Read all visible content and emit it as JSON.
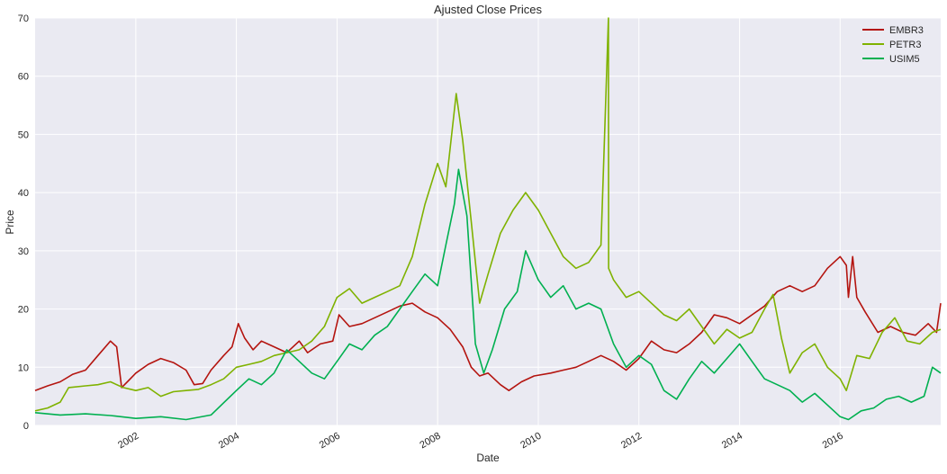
{
  "chart_data": {
    "type": "line",
    "title": "Ajusted Close Prices",
    "xlabel": "Date",
    "ylabel": "Price",
    "xlim": [
      "2000-01-01",
      "2017-12-31"
    ],
    "ylim": [
      0,
      70
    ],
    "yticks": [
      0,
      10,
      20,
      30,
      40,
      50,
      60,
      70
    ],
    "xticks": [
      "2002",
      "2004",
      "2006",
      "2008",
      "2010",
      "2012",
      "2014",
      "2016"
    ],
    "grid": true,
    "legend_position": "top-right",
    "background": "#eaeaf2",
    "series": [
      {
        "name": "EMBR3",
        "color": "#b4140f",
        "points": [
          [
            "2000-01-01",
            6.0
          ],
          [
            "2000-04-01",
            6.8
          ],
          [
            "2000-07-01",
            7.5
          ],
          [
            "2000-10-01",
            8.8
          ],
          [
            "2001-01-01",
            9.5
          ],
          [
            "2001-04-01",
            12.0
          ],
          [
            "2001-07-01",
            14.5
          ],
          [
            "2001-08-15",
            13.5
          ],
          [
            "2001-09-20",
            6.5
          ],
          [
            "2001-11-01",
            7.5
          ],
          [
            "2002-01-01",
            9.0
          ],
          [
            "2002-04-01",
            10.5
          ],
          [
            "2002-07-01",
            11.5
          ],
          [
            "2002-10-01",
            10.8
          ],
          [
            "2003-01-01",
            9.5
          ],
          [
            "2003-03-01",
            7.0
          ],
          [
            "2003-05-01",
            7.2
          ],
          [
            "2003-07-01",
            9.5
          ],
          [
            "2003-10-01",
            12.0
          ],
          [
            "2003-12-01",
            13.5
          ],
          [
            "2004-01-15",
            17.5
          ],
          [
            "2004-03-01",
            15.0
          ],
          [
            "2004-05-01",
            13.0
          ],
          [
            "2004-07-01",
            14.5
          ],
          [
            "2004-10-01",
            13.5
          ],
          [
            "2005-01-01",
            12.5
          ],
          [
            "2005-04-01",
            14.5
          ],
          [
            "2005-06-01",
            12.5
          ],
          [
            "2005-09-01",
            14.0
          ],
          [
            "2005-12-01",
            14.5
          ],
          [
            "2006-01-15",
            19.0
          ],
          [
            "2006-04-01",
            17.0
          ],
          [
            "2006-07-01",
            17.5
          ],
          [
            "2006-10-01",
            18.5
          ],
          [
            "2007-01-01",
            19.5
          ],
          [
            "2007-04-01",
            20.5
          ],
          [
            "2007-07-01",
            21.0
          ],
          [
            "2007-10-01",
            19.5
          ],
          [
            "2008-01-01",
            18.5
          ],
          [
            "2008-04-01",
            16.5
          ],
          [
            "2008-07-01",
            13.5
          ],
          [
            "2008-09-01",
            10.0
          ],
          [
            "2008-11-01",
            8.5
          ],
          [
            "2009-01-01",
            9.0
          ],
          [
            "2009-04-01",
            7.0
          ],
          [
            "2009-06-01",
            6.0
          ],
          [
            "2009-09-01",
            7.5
          ],
          [
            "2009-12-01",
            8.5
          ],
          [
            "2010-04-01",
            9.0
          ],
          [
            "2010-07-01",
            9.5
          ],
          [
            "2010-10-01",
            10.0
          ],
          [
            "2011-01-01",
            11.0
          ],
          [
            "2011-04-01",
            12.0
          ],
          [
            "2011-07-01",
            11.0
          ],
          [
            "2011-10-01",
            9.5
          ],
          [
            "2012-01-01",
            11.5
          ],
          [
            "2012-04-01",
            14.5
          ],
          [
            "2012-07-01",
            13.0
          ],
          [
            "2012-10-01",
            12.5
          ],
          [
            "2013-01-01",
            14.0
          ],
          [
            "2013-04-01",
            16.0
          ],
          [
            "2013-07-01",
            19.0
          ],
          [
            "2013-10-01",
            18.5
          ],
          [
            "2014-01-01",
            17.5
          ],
          [
            "2014-04-01",
            19.0
          ],
          [
            "2014-07-01",
            20.5
          ],
          [
            "2014-10-01",
            23.0
          ],
          [
            "2015-01-01",
            24.0
          ],
          [
            "2015-04-01",
            23.0
          ],
          [
            "2015-07-01",
            24.0
          ],
          [
            "2015-10-01",
            27.0
          ],
          [
            "2016-01-01",
            29.0
          ],
          [
            "2016-02-15",
            27.5
          ],
          [
            "2016-03-01",
            22.0
          ],
          [
            "2016-04-01",
            29.0
          ],
          [
            "2016-05-01",
            22.0
          ],
          [
            "2016-07-01",
            19.5
          ],
          [
            "2016-10-01",
            16.0
          ],
          [
            "2017-01-01",
            17.0
          ],
          [
            "2017-04-01",
            16.0
          ],
          [
            "2017-07-01",
            15.5
          ],
          [
            "2017-10-01",
            17.5
          ],
          [
            "2017-12-01",
            16.0
          ],
          [
            "2017-12-31",
            21.0
          ]
        ]
      },
      {
        "name": "PETR3",
        "color": "#7fb200",
        "points": [
          [
            "2000-01-01",
            2.5
          ],
          [
            "2000-04-01",
            3.0
          ],
          [
            "2000-07-01",
            4.0
          ],
          [
            "2000-09-01",
            6.5
          ],
          [
            "2001-01-01",
            6.8
          ],
          [
            "2001-04-01",
            7.0
          ],
          [
            "2001-07-01",
            7.5
          ],
          [
            "2001-10-01",
            6.5
          ],
          [
            "2002-01-01",
            6.0
          ],
          [
            "2002-04-01",
            6.5
          ],
          [
            "2002-07-01",
            5.0
          ],
          [
            "2002-10-01",
            5.8
          ],
          [
            "2003-01-01",
            6.0
          ],
          [
            "2003-04-01",
            6.2
          ],
          [
            "2003-07-01",
            7.0
          ],
          [
            "2003-10-01",
            8.0
          ],
          [
            "2004-01-01",
            10.0
          ],
          [
            "2004-04-01",
            10.5
          ],
          [
            "2004-07-01",
            11.0
          ],
          [
            "2004-10-01",
            12.0
          ],
          [
            "2005-01-01",
            12.5
          ],
          [
            "2005-04-01",
            13.0
          ],
          [
            "2005-07-01",
            14.5
          ],
          [
            "2005-10-01",
            17.0
          ],
          [
            "2006-01-01",
            22.0
          ],
          [
            "2006-04-01",
            23.5
          ],
          [
            "2006-07-01",
            21.0
          ],
          [
            "2006-10-01",
            22.0
          ],
          [
            "2007-01-01",
            23.0
          ],
          [
            "2007-04-01",
            24.0
          ],
          [
            "2007-07-01",
            29.0
          ],
          [
            "2007-10-01",
            38.0
          ],
          [
            "2008-01-01",
            45.0
          ],
          [
            "2008-03-01",
            41.0
          ],
          [
            "2008-05-15",
            57.0
          ],
          [
            "2008-07-01",
            49.0
          ],
          [
            "2008-09-01",
            35.0
          ],
          [
            "2008-11-01",
            21.0
          ],
          [
            "2009-01-01",
            26.0
          ],
          [
            "2009-04-01",
            33.0
          ],
          [
            "2009-07-01",
            37.0
          ],
          [
            "2009-10-01",
            40.0
          ],
          [
            "2010-01-01",
            37.0
          ],
          [
            "2010-04-01",
            33.0
          ],
          [
            "2010-07-01",
            29.0
          ],
          [
            "2010-10-01",
            27.0
          ],
          [
            "2011-01-01",
            28.0
          ],
          [
            "2011-04-01",
            31.0
          ],
          [
            "2011-05-25",
            70.0
          ],
          [
            "2011-05-26",
            27.0
          ],
          [
            "2011-07-01",
            25.0
          ],
          [
            "2011-10-01",
            22.0
          ],
          [
            "2012-01-01",
            23.0
          ],
          [
            "2012-04-01",
            21.0
          ],
          [
            "2012-07-01",
            19.0
          ],
          [
            "2012-10-01",
            18.0
          ],
          [
            "2013-01-01",
            20.0
          ],
          [
            "2013-04-01",
            17.0
          ],
          [
            "2013-07-01",
            14.0
          ],
          [
            "2013-10-01",
            16.5
          ],
          [
            "2014-01-01",
            15.0
          ],
          [
            "2014-04-01",
            16.0
          ],
          [
            "2014-07-01",
            20.0
          ],
          [
            "2014-09-01",
            22.5
          ],
          [
            "2014-11-01",
            15.0
          ],
          [
            "2015-01-01",
            9.0
          ],
          [
            "2015-04-01",
            12.5
          ],
          [
            "2015-07-01",
            14.0
          ],
          [
            "2015-10-01",
            10.0
          ],
          [
            "2016-01-01",
            8.0
          ],
          [
            "2016-02-15",
            6.0
          ],
          [
            "2016-05-01",
            12.0
          ],
          [
            "2016-08-01",
            11.5
          ],
          [
            "2016-11-01",
            16.0
          ],
          [
            "2017-02-01",
            18.5
          ],
          [
            "2017-05-01",
            14.5
          ],
          [
            "2017-08-01",
            14.0
          ],
          [
            "2017-11-01",
            16.0
          ],
          [
            "2017-12-31",
            16.5
          ]
        ]
      },
      {
        "name": "USIM5",
        "color": "#00b050",
        "points": [
          [
            "2000-01-01",
            2.2
          ],
          [
            "2000-07-01",
            1.8
          ],
          [
            "2001-01-01",
            2.0
          ],
          [
            "2001-07-01",
            1.7
          ],
          [
            "2002-01-01",
            1.2
          ],
          [
            "2002-07-01",
            1.5
          ],
          [
            "2003-01-01",
            1.0
          ],
          [
            "2003-07-01",
            1.8
          ],
          [
            "2004-01-01",
            6.0
          ],
          [
            "2004-04-01",
            8.0
          ],
          [
            "2004-07-01",
            7.0
          ],
          [
            "2004-10-01",
            9.0
          ],
          [
            "2005-01-01",
            13.0
          ],
          [
            "2005-04-01",
            11.0
          ],
          [
            "2005-07-01",
            9.0
          ],
          [
            "2005-10-01",
            8.0
          ],
          [
            "2006-01-01",
            11.0
          ],
          [
            "2006-04-01",
            14.0
          ],
          [
            "2006-07-01",
            13.0
          ],
          [
            "2006-10-01",
            15.5
          ],
          [
            "2007-01-01",
            17.0
          ],
          [
            "2007-04-01",
            20.0
          ],
          [
            "2007-07-01",
            23.0
          ],
          [
            "2007-10-01",
            26.0
          ],
          [
            "2008-01-01",
            24.0
          ],
          [
            "2008-03-01",
            31.0
          ],
          [
            "2008-05-01",
            38.0
          ],
          [
            "2008-06-01",
            44.0
          ],
          [
            "2008-08-01",
            36.0
          ],
          [
            "2008-10-01",
            14.0
          ],
          [
            "2008-12-01",
            9.0
          ],
          [
            "2009-02-01",
            13.0
          ],
          [
            "2009-05-01",
            20.0
          ],
          [
            "2009-08-01",
            23.0
          ],
          [
            "2009-10-01",
            30.0
          ],
          [
            "2010-01-01",
            25.0
          ],
          [
            "2010-04-01",
            22.0
          ],
          [
            "2010-07-01",
            24.0
          ],
          [
            "2010-10-01",
            20.0
          ],
          [
            "2011-01-01",
            21.0
          ],
          [
            "2011-04-01",
            20.0
          ],
          [
            "2011-07-01",
            14.0
          ],
          [
            "2011-10-01",
            10.0
          ],
          [
            "2012-01-01",
            12.0
          ],
          [
            "2012-04-01",
            10.5
          ],
          [
            "2012-07-01",
            6.0
          ],
          [
            "2012-10-01",
            4.5
          ],
          [
            "2013-01-01",
            8.0
          ],
          [
            "2013-04-01",
            11.0
          ],
          [
            "2013-07-01",
            9.0
          ],
          [
            "2013-10-01",
            11.5
          ],
          [
            "2014-01-01",
            14.0
          ],
          [
            "2014-04-01",
            11.0
          ],
          [
            "2014-07-01",
            8.0
          ],
          [
            "2014-10-01",
            7.0
          ],
          [
            "2015-01-01",
            6.0
          ],
          [
            "2015-04-01",
            4.0
          ],
          [
            "2015-07-01",
            5.5
          ],
          [
            "2015-10-01",
            3.5
          ],
          [
            "2016-01-01",
            1.5
          ],
          [
            "2016-03-01",
            1.0
          ],
          [
            "2016-06-01",
            2.5
          ],
          [
            "2016-09-01",
            3.0
          ],
          [
            "2016-12-01",
            4.5
          ],
          [
            "2017-03-01",
            5.0
          ],
          [
            "2017-06-01",
            4.0
          ],
          [
            "2017-09-01",
            5.0
          ],
          [
            "2017-11-01",
            10.0
          ],
          [
            "2017-12-31",
            9.0
          ]
        ]
      }
    ]
  }
}
